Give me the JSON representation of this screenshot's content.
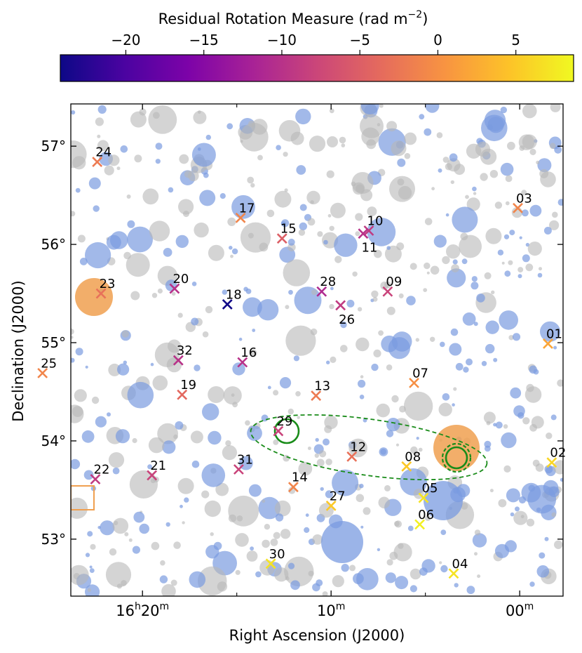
{
  "chart_data": {
    "type": "scatter",
    "colorbar": {
      "label": "Residual Rotation Measure (rad m",
      "label_exp": "−2",
      "label_close": ")",
      "range": [
        -24.2,
        8.7
      ],
      "ticks": [
        {
          "value": -20,
          "label": "−20"
        },
        {
          "value": -15,
          "label": "−15"
        },
        {
          "value": -10,
          "label": "−10"
        },
        {
          "value": -5,
          "label": "−5"
        },
        {
          "value": 0,
          "label": "0"
        },
        {
          "value": 5,
          "label": "5"
        }
      ],
      "colormap": "plasma"
    },
    "xlabel": "Right Ascension (J2000)",
    "ylabel": "Declination (J2000)",
    "x_axis_minutes_range": [
      23.8,
      -2.3
    ],
    "ylim": [
      52.42,
      57.43
    ],
    "x_ticks": [
      {
        "value": 20,
        "label_h": "16",
        "label_m": "20",
        "type": "hm"
      },
      {
        "value": 10,
        "label_m": "10",
        "type": "m"
      },
      {
        "value": 0,
        "label_m": "00",
        "type": "m"
      }
    ],
    "x_minor_ticks": [
      15,
      5
    ],
    "y_ticks": [
      {
        "value": 53,
        "label": "53°"
      },
      {
        "value": 54,
        "label": "54°"
      },
      {
        "value": 55,
        "label": "55°"
      },
      {
        "value": 56,
        "label": "56°"
      },
      {
        "value": 57,
        "label": "57°"
      }
    ],
    "rm_sources": [
      {
        "id": "01",
        "ra_min": -1.5,
        "dec": 54.99,
        "rm": 2
      },
      {
        "id": "02",
        "ra_min": -1.7,
        "dec": 53.78,
        "rm": 6
      },
      {
        "id": "03",
        "ra_min": 0.1,
        "dec": 56.37,
        "rm": -1
      },
      {
        "id": "04",
        "ra_min": 3.5,
        "dec": 52.65,
        "rm": 7
      },
      {
        "id": "05",
        "ra_min": 5.1,
        "dec": 53.42,
        "rm": 7
      },
      {
        "id": "06",
        "ra_min": 5.3,
        "dec": 53.15,
        "rm": 8
      },
      {
        "id": "07",
        "ra_min": 5.6,
        "dec": 54.59,
        "rm": 0
      },
      {
        "id": "08",
        "ra_min": 6.0,
        "dec": 53.74,
        "rm": 5
      },
      {
        "id": "09",
        "ra_min": 7.0,
        "dec": 55.52,
        "rm": -8
      },
      {
        "id": "10",
        "ra_min": 8.0,
        "dec": 56.14,
        "rm": -9
      },
      {
        "id": "11",
        "ra_min": 8.3,
        "dec": 56.11,
        "rm": -10
      },
      {
        "id": "12",
        "ra_min": 8.9,
        "dec": 53.84,
        "rm": -3
      },
      {
        "id": "13",
        "ra_min": 10.8,
        "dec": 54.46,
        "rm": -2
      },
      {
        "id": "14",
        "ra_min": 12.0,
        "dec": 53.53,
        "rm": -1
      },
      {
        "id": "15",
        "ra_min": 12.6,
        "dec": 56.06,
        "rm": -5
      },
      {
        "id": "16",
        "ra_min": 14.7,
        "dec": 54.8,
        "rm": -10
      },
      {
        "id": "17",
        "ra_min": 14.8,
        "dec": 56.27,
        "rm": -1
      },
      {
        "id": "18",
        "ra_min": 15.5,
        "dec": 55.39,
        "rm": -24
      },
      {
        "id": "19",
        "ra_min": 17.9,
        "dec": 54.47,
        "rm": -4
      },
      {
        "id": "20",
        "ra_min": 18.3,
        "dec": 55.55,
        "rm": -10
      },
      {
        "id": "21",
        "ra_min": 19.5,
        "dec": 53.65,
        "rm": -8
      },
      {
        "id": "22",
        "ra_min": 22.5,
        "dec": 53.61,
        "rm": -9
      },
      {
        "id": "23",
        "ra_min": 22.2,
        "dec": 55.5,
        "rm": -3
      },
      {
        "id": "24",
        "ra_min": 22.4,
        "dec": 56.84,
        "rm": -2
      },
      {
        "id": "25",
        "ra_min": 25.3,
        "dec": 54.69,
        "rm": -1
      },
      {
        "id": "26",
        "ra_min": 9.5,
        "dec": 55.38,
        "rm": -9
      },
      {
        "id": "27",
        "ra_min": 10.0,
        "dec": 53.34,
        "rm": 5
      },
      {
        "id": "28",
        "ra_min": 10.5,
        "dec": 55.52,
        "rm": -11
      },
      {
        "id": "29",
        "ra_min": 12.8,
        "dec": 54.1,
        "rm": -8
      },
      {
        "id": "30",
        "ra_min": 13.2,
        "dec": 52.75,
        "rm": 7
      },
      {
        "id": "31",
        "ra_min": 14.9,
        "dec": 53.71,
        "rm": -8
      },
      {
        "id": "32",
        "ra_min": 18.1,
        "dec": 54.82,
        "rm": -10
      }
    ]
  }
}
